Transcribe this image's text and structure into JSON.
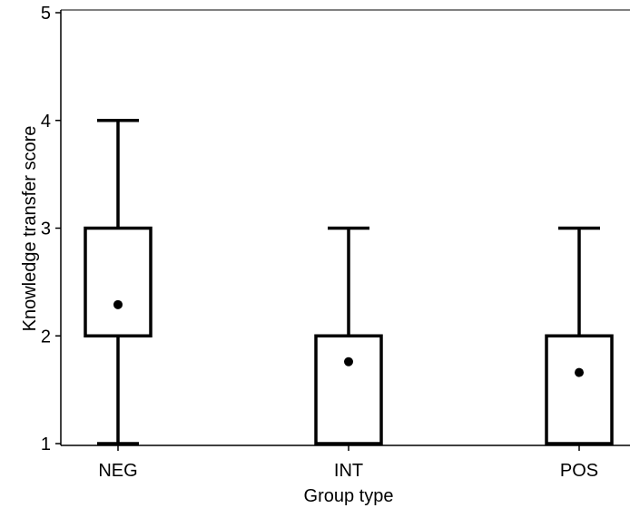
{
  "chart_data": {
    "type": "box",
    "title": "",
    "xlabel": "Group type",
    "ylabel": "Knowledge transfer score",
    "ylim": [
      1,
      5
    ],
    "yticks": [
      1,
      2,
      3,
      4,
      5
    ],
    "grid": false,
    "legend": "none",
    "categories": [
      "NEG",
      "INT",
      "POS"
    ],
    "boxes": [
      {
        "category": "NEG",
        "whisker_low": 1,
        "q1": 2,
        "q3": 3,
        "whisker_high": 4,
        "mean": 2.29
      },
      {
        "category": "INT",
        "whisker_low": 1,
        "q1": 1,
        "q3": 2,
        "whisker_high": 3,
        "mean": 1.76
      },
      {
        "category": "POS",
        "whisker_low": 1,
        "q1": 1,
        "q3": 2,
        "whisker_high": 3,
        "mean": 1.66
      }
    ],
    "colors": {
      "stroke": "#000000",
      "fill": "#ffffff",
      "mean_marker": "#000000"
    }
  }
}
